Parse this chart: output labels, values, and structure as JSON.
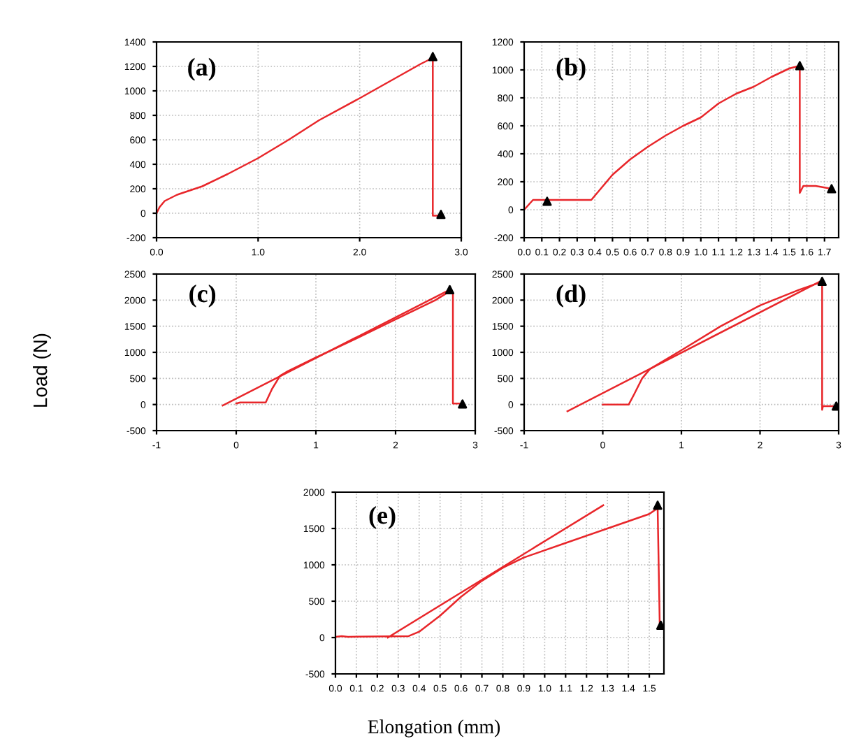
{
  "chart_data": [
    {
      "type": "line",
      "ylabel": "Load (N)",
      "annotations": [
        "(a)"
      ],
      "xlim": [
        0,
        3
      ],
      "ylim": [
        -200,
        1400
      ],
      "xticks": [
        {
          "value": 0,
          "label": "0.0"
        },
        {
          "value": 1,
          "label": "1.0"
        },
        {
          "value": 2,
          "label": "2.0"
        },
        {
          "value": 3,
          "label": "3.0"
        }
      ],
      "yticks": [
        -200,
        0,
        200,
        400,
        600,
        800,
        1000,
        1200,
        1400
      ],
      "grid": true,
      "legend": false,
      "series": [
        {
          "color": "#e8262a",
          "marker": "none",
          "x": [
            0,
            0.03,
            0.08,
            0.2,
            0.45,
            0.7,
            1.0,
            1.3,
            1.6,
            2.0,
            2.3,
            2.6,
            2.72,
            2.72,
            2.78
          ],
          "values": [
            0,
            50,
            100,
            150,
            220,
            320,
            450,
            600,
            760,
            940,
            1080,
            1220,
            1270,
            -20,
            -20
          ]
        },
        {
          "type": "scatter",
          "color": "#000000",
          "marker": "triangle",
          "x": [
            2.72,
            2.8
          ],
          "values": [
            1280,
            -10
          ]
        }
      ]
    },
    {
      "type": "line",
      "annotations": [
        "(b)"
      ],
      "xlim": [
        0,
        1.78
      ],
      "ylim": [
        -200,
        1200
      ],
      "xticks": [
        {
          "value": 0,
          "label": "0.0"
        },
        0.1,
        0.2,
        0.3,
        0.4,
        0.5,
        0.6,
        0.7,
        0.8,
        0.9,
        {
          "value": 1,
          "label": "1.0"
        },
        1.1,
        1.2,
        1.3,
        1.4,
        1.5,
        1.6,
        1.7
      ],
      "yticks": [
        -200,
        0,
        200,
        400,
        600,
        800,
        1000,
        1200
      ],
      "grid": true,
      "legend": false,
      "series": [
        {
          "color": "#e8262a",
          "marker": "none",
          "x": [
            0,
            0.05,
            0.1,
            0.38,
            0.42,
            0.5,
            0.6,
            0.7,
            0.8,
            0.9,
            1.0,
            1.1,
            1.2,
            1.3,
            1.4,
            1.5,
            1.56,
            1.56,
            1.58,
            1.65,
            1.74
          ],
          "values": [
            0,
            70,
            70,
            70,
            130,
            250,
            360,
            450,
            530,
            600,
            660,
            760,
            830,
            880,
            950,
            1010,
            1030,
            120,
            170,
            170,
            150
          ]
        },
        {
          "type": "scatter",
          "color": "#000000",
          "marker": "triangle",
          "x": [
            0.13,
            1.56,
            1.74
          ],
          "values": [
            60,
            1030,
            150
          ]
        }
      ]
    },
    {
      "type": "line",
      "annotations": [
        "(c)"
      ],
      "xlim": [
        -1,
        3
      ],
      "ylim": [
        -500,
        2500
      ],
      "xticks": [
        -1,
        0,
        1,
        2,
        3
      ],
      "yticks": [
        -500,
        0,
        500,
        1000,
        1500,
        2000,
        2500
      ],
      "grid": true,
      "legend": false,
      "series": [
        {
          "color": "#e8262a",
          "marker": "none",
          "x": [
            0,
            0.05,
            0.37,
            0.45,
            0.55,
            0.65,
            1,
            1.5,
            2,
            2.5,
            2.68,
            2.72,
            2.72,
            2.82
          ],
          "values": [
            20,
            40,
            40,
            300,
            550,
            640,
            900,
            1260,
            1630,
            2000,
            2170,
            2130,
            20,
            20
          ]
        },
        {
          "color": "#e8262a",
          "marker": "none",
          "x": [
            -0.17,
            2.68
          ],
          "values": [
            -20,
            2200
          ]
        },
        {
          "type": "scatter",
          "color": "#000000",
          "marker": "triangle",
          "x": [
            2.68,
            2.84
          ],
          "values": [
            2200,
            10
          ]
        }
      ]
    },
    {
      "type": "line",
      "annotations": [
        "(d)"
      ],
      "xlim": [
        -1,
        3
      ],
      "ylim": [
        -500,
        2500
      ],
      "xticks": [
        -1,
        0,
        1,
        2,
        3
      ],
      "yticks": [
        -500,
        0,
        500,
        1000,
        1500,
        2000,
        2500
      ],
      "grid": true,
      "legend": false,
      "series": [
        {
          "color": "#e8262a",
          "marker": "none",
          "x": [
            0,
            0.33,
            0.4,
            0.5,
            0.6,
            1,
            1.5,
            2,
            2.5,
            2.75,
            2.79,
            2.79,
            2.8,
            2.95
          ],
          "values": [
            0,
            0,
            200,
            500,
            680,
            1040,
            1500,
            1900,
            2200,
            2330,
            2300,
            -100,
            -30,
            -30
          ]
        },
        {
          "color": "#e8262a",
          "marker": "none",
          "x": [
            -0.45,
            2.78
          ],
          "values": [
            -130,
            2370
          ]
        },
        {
          "type": "scatter",
          "color": "#000000",
          "marker": "triangle",
          "x": [
            2.79,
            2.97
          ],
          "values": [
            2360,
            -30
          ]
        }
      ]
    },
    {
      "type": "line",
      "xlabel": "Elongation (mm)",
      "annotations": [
        "(e)"
      ],
      "xlim": [
        0,
        1.57
      ],
      "ylim": [
        -500,
        2000
      ],
      "xticks": [
        {
          "value": 0,
          "label": "0.0"
        },
        0.1,
        0.2,
        0.3,
        0.4,
        0.5,
        0.6,
        0.7,
        0.8,
        0.9,
        {
          "value": 1,
          "label": "1.0"
        },
        1.1,
        1.2,
        1.3,
        1.4,
        1.5
      ],
      "yticks": [
        -500,
        0,
        500,
        1000,
        1500,
        2000
      ],
      "grid": true,
      "legend": false,
      "series": [
        {
          "color": "#e8262a",
          "marker": "none",
          "x": [
            0,
            0.03,
            0.06,
            0.35,
            0.4,
            0.5,
            0.6,
            0.7,
            0.8,
            0.9,
            1.1,
            1.3,
            1.5,
            1.54,
            1.55
          ],
          "values": [
            10,
            20,
            10,
            20,
            80,
            300,
            560,
            780,
            960,
            1100,
            1300,
            1500,
            1700,
            1780,
            170
          ]
        },
        {
          "color": "#e8262a",
          "marker": "none",
          "x": [
            0.25,
            1.28
          ],
          "values": [
            0,
            1820
          ]
        },
        {
          "type": "scatter",
          "color": "#000000",
          "marker": "triangle",
          "x": [
            1.54,
            1.555
          ],
          "values": [
            1820,
            170
          ]
        }
      ]
    }
  ]
}
